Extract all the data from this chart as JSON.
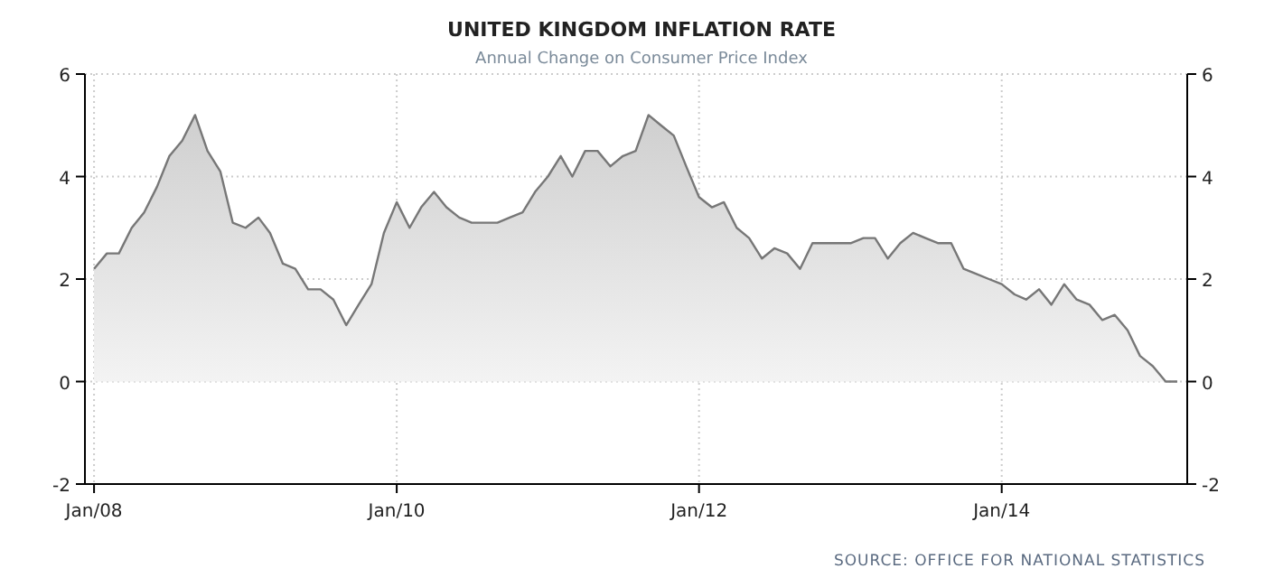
{
  "chart_data": {
    "type": "area",
    "title": "UNITED KINGDOM INFLATION RATE",
    "subtitle": "Annual Change on Consumer Price Index",
    "x": [
      "2008-01",
      "2008-02",
      "2008-03",
      "2008-04",
      "2008-05",
      "2008-06",
      "2008-07",
      "2008-08",
      "2008-09",
      "2008-10",
      "2008-11",
      "2008-12",
      "2009-01",
      "2009-02",
      "2009-03",
      "2009-04",
      "2009-05",
      "2009-06",
      "2009-07",
      "2009-08",
      "2009-09",
      "2009-10",
      "2009-11",
      "2009-12",
      "2010-01",
      "2010-02",
      "2010-03",
      "2010-04",
      "2010-05",
      "2010-06",
      "2010-07",
      "2010-08",
      "2010-09",
      "2010-10",
      "2010-11",
      "2010-12",
      "2011-01",
      "2011-02",
      "2011-03",
      "2011-04",
      "2011-05",
      "2011-06",
      "2011-07",
      "2011-08",
      "2011-09",
      "2011-10",
      "2011-11",
      "2011-12",
      "2012-01",
      "2012-02",
      "2012-03",
      "2012-04",
      "2012-05",
      "2012-06",
      "2012-07",
      "2012-08",
      "2012-09",
      "2012-10",
      "2012-11",
      "2012-12",
      "2013-01",
      "2013-02",
      "2013-03",
      "2013-04",
      "2013-05",
      "2013-06",
      "2013-07",
      "2013-08",
      "2013-09",
      "2013-10",
      "2013-11",
      "2013-12",
      "2014-01",
      "2014-02",
      "2014-03",
      "2014-04",
      "2014-05",
      "2014-06",
      "2014-07",
      "2014-08",
      "2014-09",
      "2014-10",
      "2014-11",
      "2014-12",
      "2015-01",
      "2015-02",
      "2015-03"
    ],
    "series": [
      {
        "color": "#777777",
        "values": [
          2.2,
          2.5,
          2.5,
          3.0,
          3.3,
          3.8,
          4.4,
          4.7,
          5.2,
          4.5,
          4.1,
          3.1,
          3.0,
          3.2,
          2.9,
          2.3,
          2.2,
          1.8,
          1.8,
          1.6,
          1.1,
          1.5,
          1.9,
          2.9,
          3.5,
          3.0,
          3.4,
          3.7,
          3.4,
          3.2,
          3.1,
          3.1,
          3.1,
          3.2,
          3.3,
          3.7,
          4.0,
          4.4,
          4.0,
          4.5,
          4.5,
          4.2,
          4.4,
          4.5,
          5.2,
          5.0,
          4.8,
          4.2,
          3.6,
          3.4,
          3.5,
          3.0,
          2.8,
          2.4,
          2.6,
          2.5,
          2.2,
          2.7,
          2.7,
          2.7,
          2.7,
          2.8,
          2.8,
          2.4,
          2.7,
          2.9,
          2.8,
          2.7,
          2.7,
          2.2,
          2.1,
          2.0,
          1.9,
          1.7,
          1.6,
          1.8,
          1.5,
          1.9,
          1.6,
          1.5,
          1.2,
          1.3,
          1.0,
          0.5,
          0.3,
          0.0,
          0.0
        ]
      }
    ],
    "xlim": [
      "2007-12-10",
      "2015-03-25"
    ],
    "xticks": [
      {
        "value": "2008-01",
        "label": "Jan/08"
      },
      {
        "value": "2010-01",
        "label": "Jan/10"
      },
      {
        "value": "2012-01",
        "label": "Jan/12"
      },
      {
        "value": "2014-01",
        "label": "Jan/14"
      }
    ],
    "ylim": [
      -2,
      6
    ],
    "yticks": [
      -2,
      0,
      2,
      4,
      6
    ],
    "y2lim": [
      -2,
      6
    ],
    "y2ticks": [
      -2,
      0,
      2,
      4,
      6
    ],
    "grid": true,
    "marker": "none",
    "line_style": "solid",
    "annotations": [
      "SOURCE: OFFICE FOR NATIONAL STATISTICS"
    ]
  }
}
